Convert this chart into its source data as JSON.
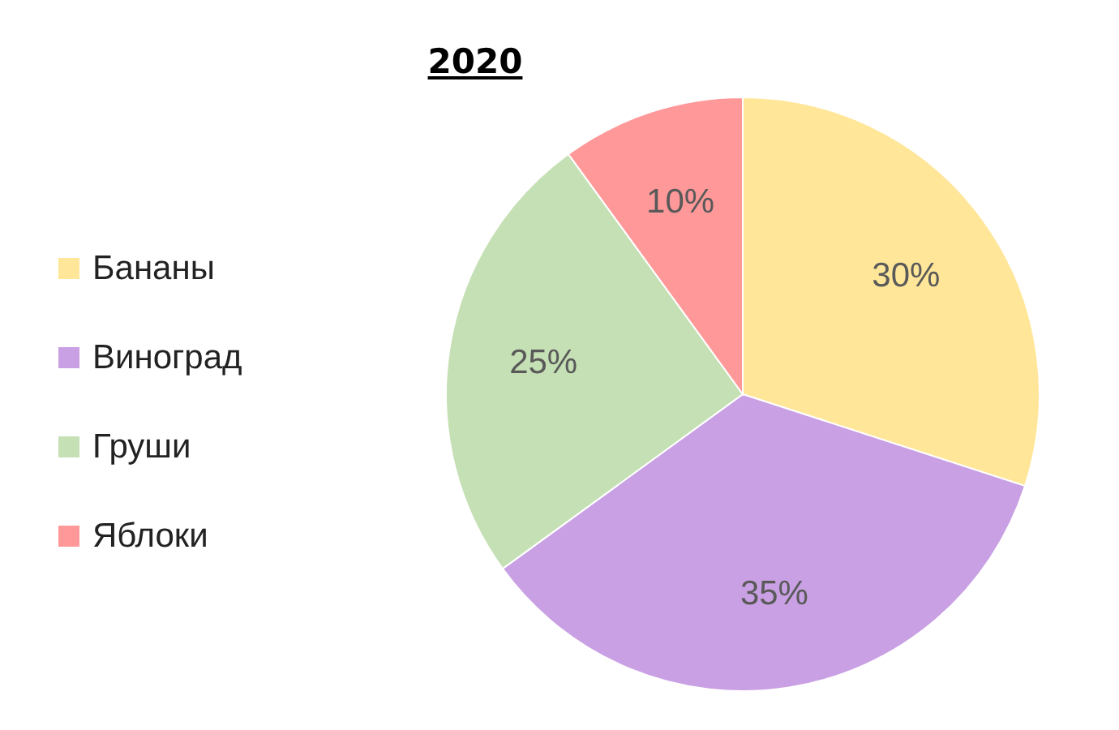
{
  "chart_data": {
    "type": "pie",
    "title": "2020",
    "categories": [
      "Бананы",
      "Виноград",
      "Груши",
      "Яблоки"
    ],
    "values": [
      30,
      35,
      25,
      10
    ],
    "colors": [
      "#ffe699",
      "#c9a0e3",
      "#c5e0b4",
      "#ff9999"
    ],
    "value_labels": [
      "30%",
      "35%",
      "25%",
      "10%"
    ],
    "legend": "left"
  }
}
